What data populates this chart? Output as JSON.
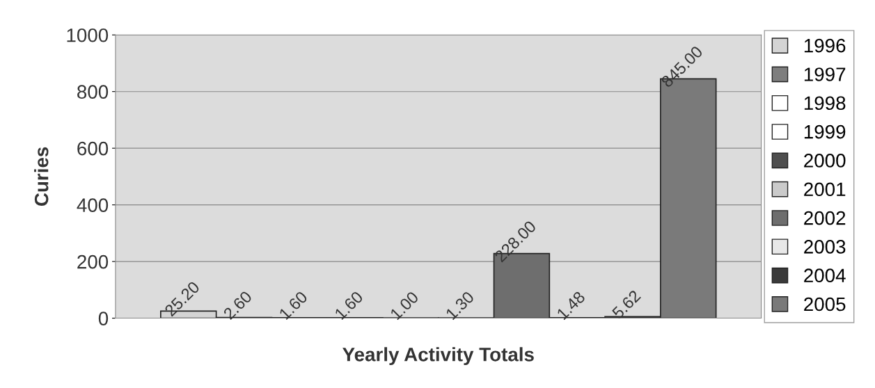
{
  "chart_data": {
    "type": "bar",
    "xlabel": "Yearly Activity Totals",
    "ylabel": "Curies",
    "categories": [
      null
    ],
    "series": [
      {
        "name": "1996",
        "color": "#d4d4d4",
        "values": [
          25.2
        ],
        "value_labels": [
          "25.20"
        ]
      },
      {
        "name": "1997",
        "color": "#7e7e7e",
        "values": [
          2.6
        ],
        "value_labels": [
          "2.60"
        ]
      },
      {
        "name": "1998",
        "color": "#ffffff",
        "values": [
          1.6
        ],
        "value_labels": [
          "1.60"
        ]
      },
      {
        "name": "1999",
        "color": "#ffffff",
        "values": [
          1.6
        ],
        "value_labels": [
          "1.60"
        ]
      },
      {
        "name": "2000",
        "color": "#4e4e4e",
        "values": [
          1.0
        ],
        "value_labels": [
          "1.00"
        ]
      },
      {
        "name": "2001",
        "color": "#cacaca",
        "values": [
          1.3
        ],
        "value_labels": [
          "1.30"
        ]
      },
      {
        "name": "2002",
        "color": "#6e6e6e",
        "values": [
          228
        ],
        "value_labels": [
          "228.00"
        ]
      },
      {
        "name": "2003",
        "color": "#e8e8e8",
        "values": [
          1.48
        ],
        "value_labels": [
          "1.48"
        ]
      },
      {
        "name": "2004",
        "color": "#3a3a3a",
        "values": [
          5.62
        ],
        "value_labels": [
          "5.62"
        ]
      },
      {
        "name": "2005",
        "color": "#7a7a7a",
        "values": [
          845
        ],
        "value_labels": [
          "845.00"
        ]
      }
    ],
    "ylim": [
      0,
      1000
    ],
    "yticks": [
      0,
      200,
      400,
      600,
      800,
      1000
    ],
    "grid": "y",
    "legend": "right",
    "tick_labels": "y"
  }
}
